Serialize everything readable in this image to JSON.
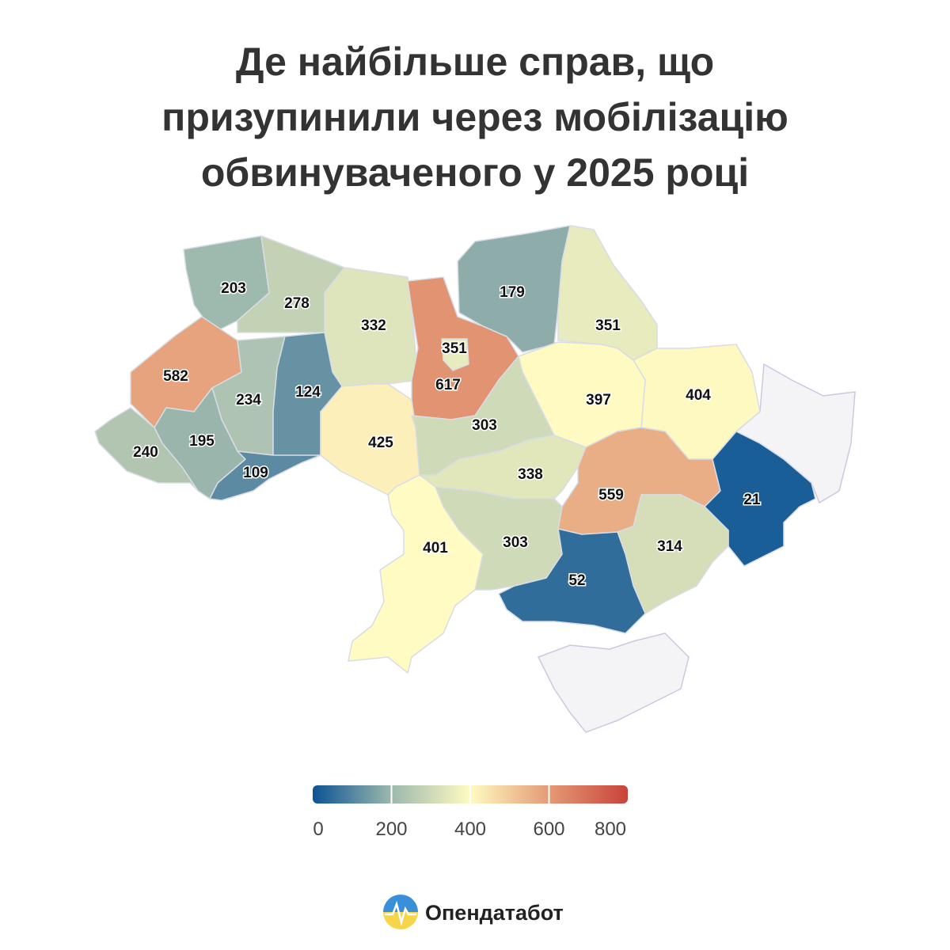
{
  "chart_data": {
    "type": "choropleth",
    "title": [
      "Де найбільше справ, що",
      "призупинили через мобілізацію",
      "обвинуваченого у 2025 році"
    ],
    "values": [
      203,
      278,
      332,
      617,
      351,
      179,
      351,
      404,
      397,
      582,
      234,
      124,
      195,
      240,
      109,
      425,
      303,
      338,
      559,
      21,
      314,
      52,
      303,
      401
    ],
    "colorscale": [
      "#0b5394",
      "#9db8ad",
      "#fffbc2",
      "#e49a76",
      "#c9433a"
    ],
    "range": [
      0,
      800
    ],
    "ticks": [
      0,
      200,
      400,
      600,
      800
    ]
  },
  "footer": {
    "brand": "Опендатабот"
  }
}
